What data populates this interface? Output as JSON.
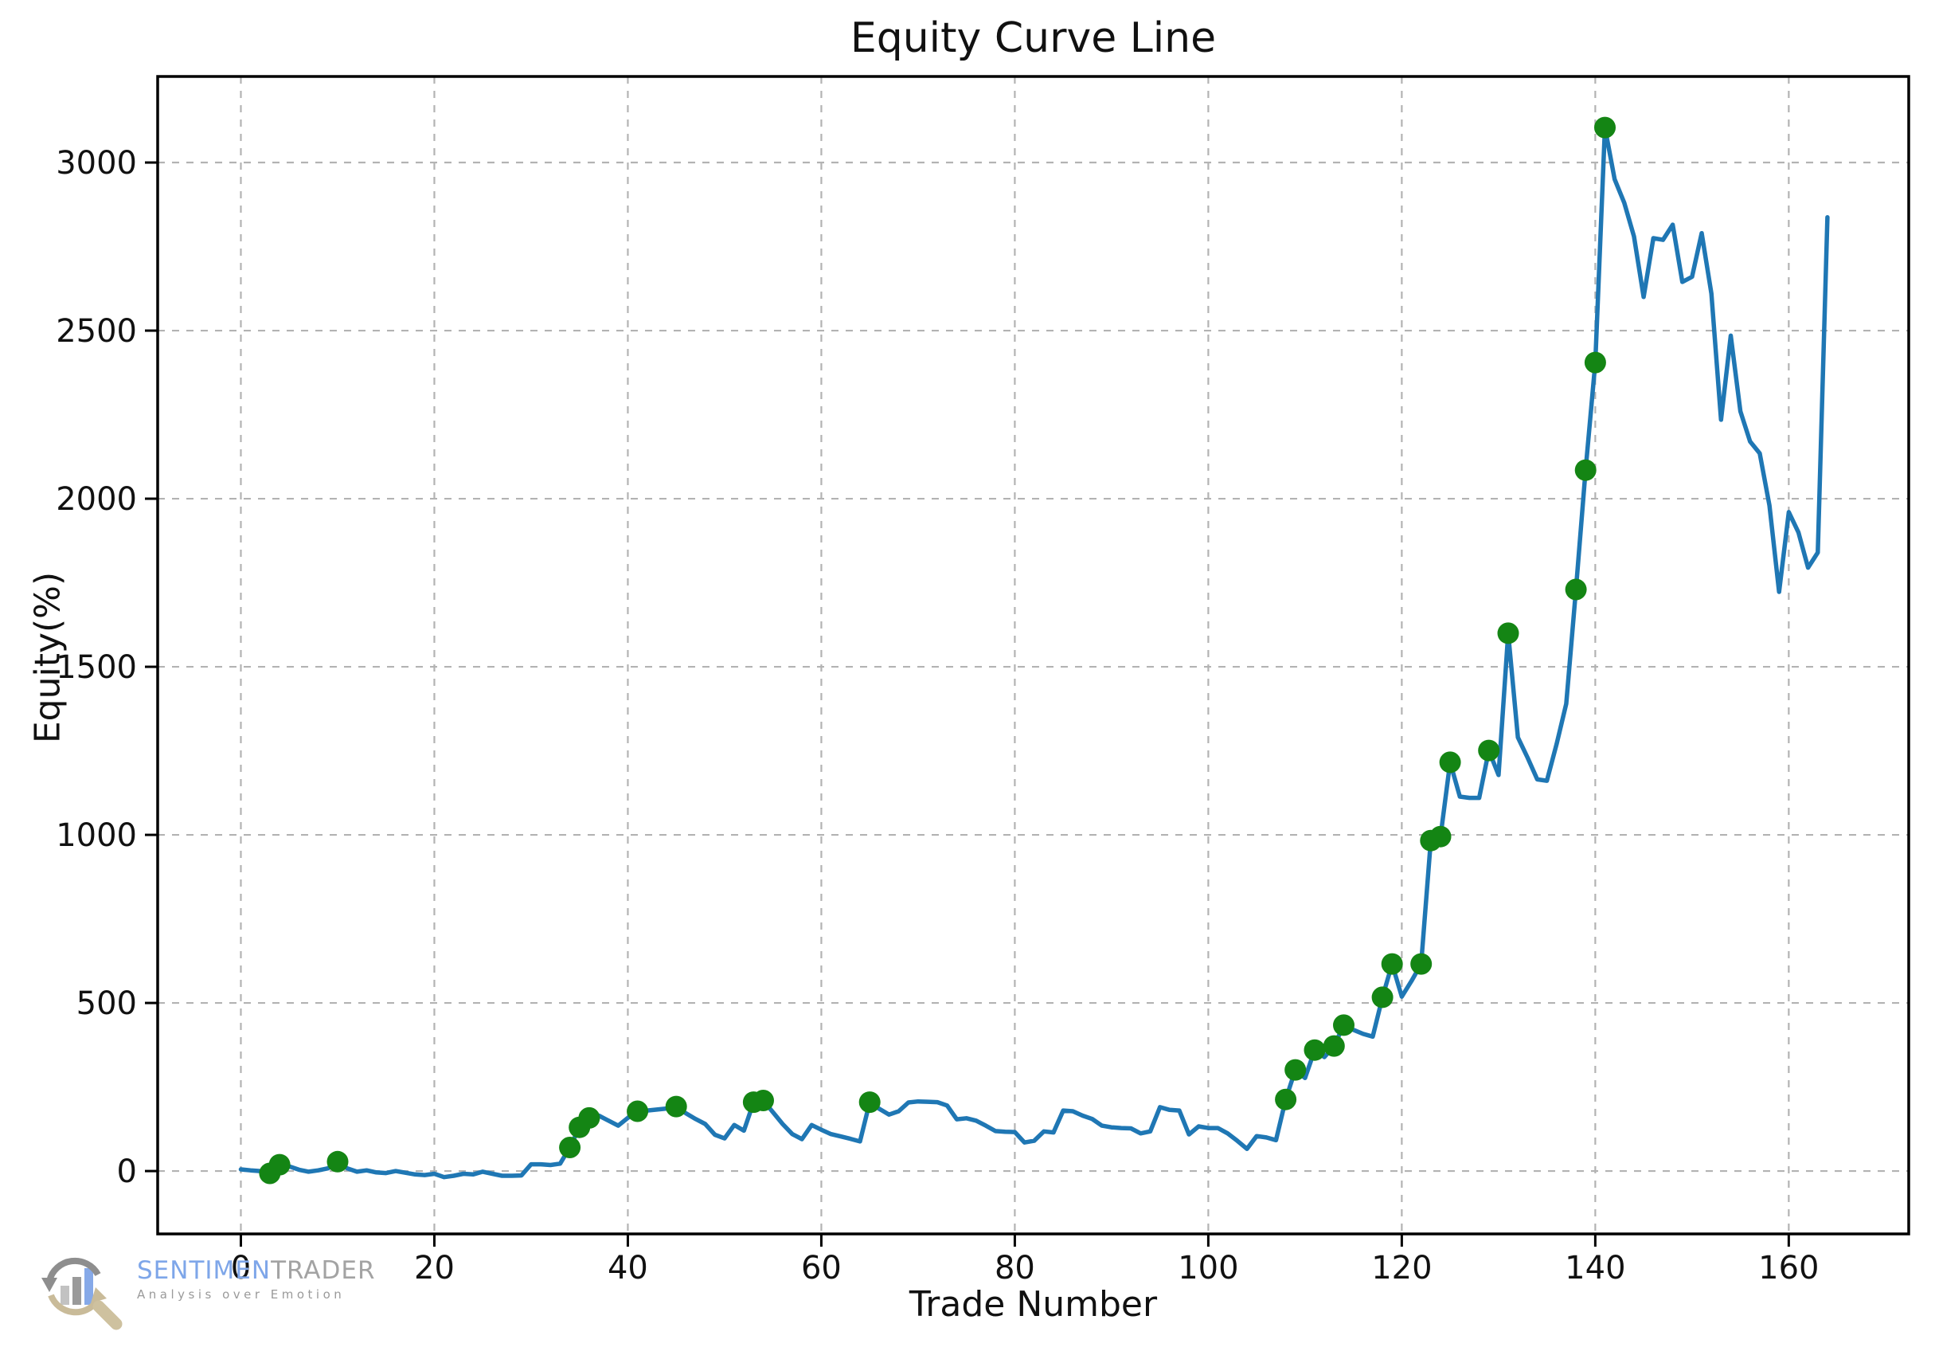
{
  "title": "Equity Curve Line",
  "axes": {
    "xlabel": "Trade Number",
    "ylabel": "Equity(%)",
    "x_ticks": [
      0,
      20,
      40,
      60,
      80,
      100,
      120,
      140,
      160
    ],
    "y_ticks": [
      0,
      500,
      1000,
      1500,
      2000,
      2500,
      3000
    ]
  },
  "chart_data": {
    "type": "line",
    "title": "Equity Curve Line",
    "xlabel": "Trade Number",
    "ylabel": "Equity(%)",
    "grid": true,
    "legend": "none",
    "xlim": [
      -8.6,
      172.4
    ],
    "ylim": [
      -187,
      3256
    ],
    "x_start": 0,
    "x_step": 1,
    "line_color": "#1f77b4",
    "marker_color": "#148514",
    "y": [
      5,
      2,
      0,
      -7,
      19,
      14,
      4,
      -2,
      2,
      8,
      28,
      8,
      -2,
      2,
      -4,
      -6,
      0,
      -5,
      -10,
      -12,
      -8,
      -18,
      -14,
      -8,
      -10,
      -2,
      -8,
      -14,
      -14,
      -13,
      20,
      20,
      18,
      22,
      70,
      130,
      158,
      165,
      150,
      135,
      158,
      178,
      180,
      183,
      186,
      192,
      172,
      155,
      140,
      108,
      97,
      137,
      120,
      205,
      210,
      175,
      140,
      110,
      95,
      137,
      123,
      110,
      103,
      96,
      88,
      205,
      185,
      168,
      178,
      204,
      207,
      206,
      205,
      195,
      154,
      157,
      150,
      135,
      119,
      117,
      116,
      85,
      90,
      118,
      115,
      180,
      178,
      165,
      155,
      135,
      130,
      128,
      127,
      112,
      118,
      190,
      182,
      180,
      109,
      133,
      128,
      128,
      112,
      90,
      66,
      104,
      100,
      92,
      213,
      301,
      277,
      360,
      339,
      372,
      434,
      420,
      408,
      400,
      517,
      616,
      519,
      565,
      616,
      983,
      995,
      1216,
      1114,
      1110,
      1110,
      1251,
      1178,
      1600,
      1290,
      1230,
      1165,
      1161,
      1270,
      1390,
      1730,
      2085,
      2405,
      3104,
      2950,
      2880,
      2780,
      2600,
      2775,
      2770,
      2815,
      2645,
      2660,
      2790,
      2610,
      2235,
      2485,
      2260,
      2170,
      2135,
      1980,
      1723,
      1960,
      1900,
      1795,
      1840,
      2837
    ],
    "new_high_marker_trades": [
      3,
      4,
      10,
      34,
      35,
      36,
      41,
      45,
      53,
      54,
      65,
      108,
      109,
      111,
      113,
      114,
      118,
      119,
      122,
      123,
      124,
      125,
      129,
      131,
      138,
      139,
      140,
      141
    ]
  },
  "watermark": {
    "brand_blue": "SENTIMEN",
    "brand_gray": "TRADER",
    "tagline": "Analysis over Emotion",
    "colors": {
      "brand_blue": "#7ea6e9",
      "brand_gray": "#a3a3a3",
      "arrow_gray": "#8e8e8e",
      "arrow_tan": "#c9bb99",
      "bar_light": "#c2c2c2",
      "bar_mid": "#9a9a9a",
      "bar_blue": "#86a9e8"
    }
  }
}
